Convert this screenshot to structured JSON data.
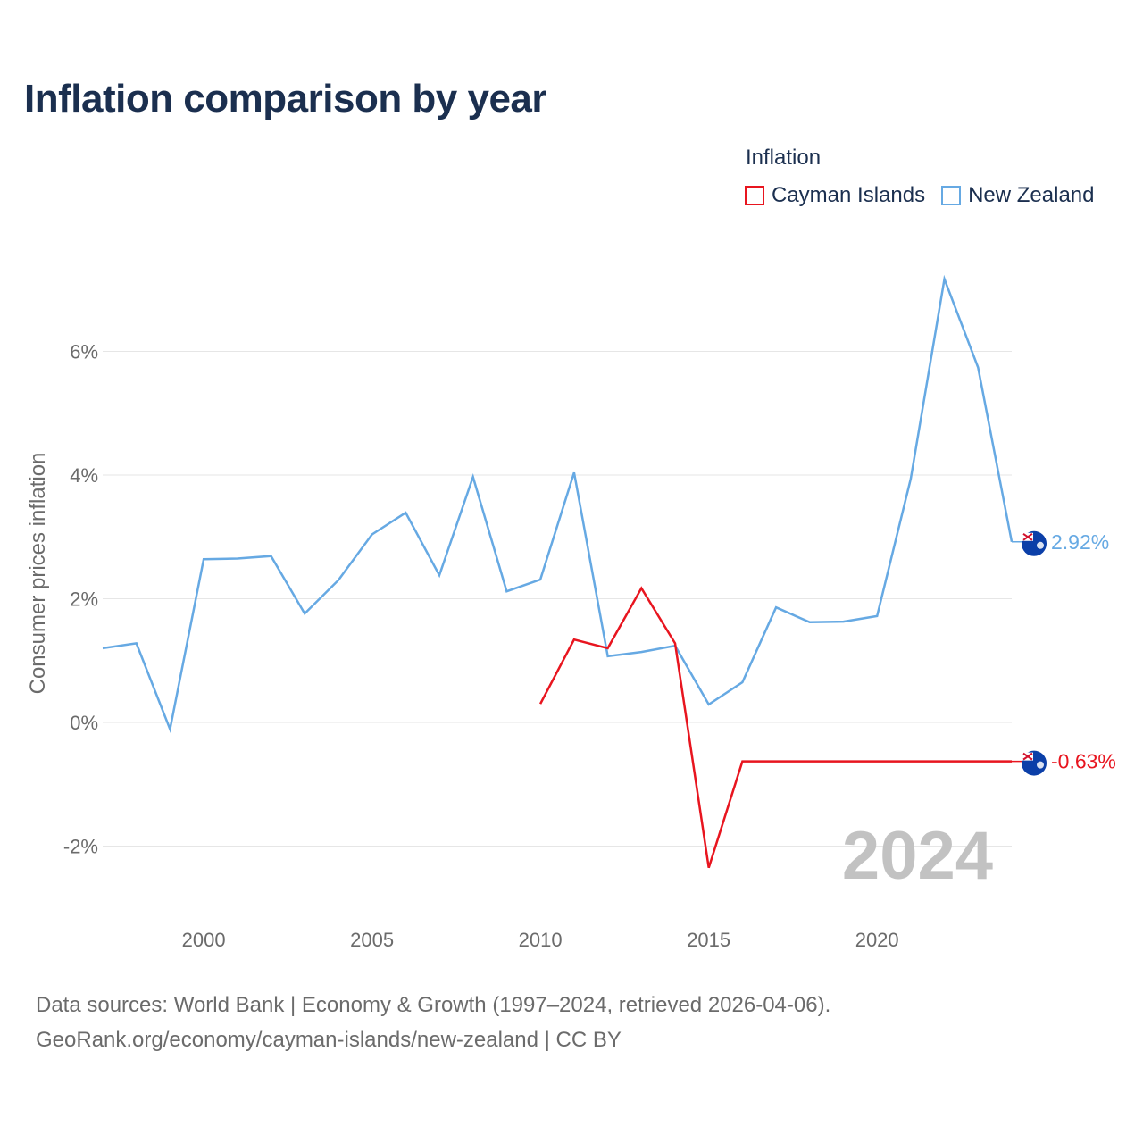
{
  "title": "Inflation comparison by year",
  "legend": {
    "title": "Inflation",
    "items": [
      {
        "label": "Cayman Islands",
        "color": "#e8151f"
      },
      {
        "label": "New Zealand",
        "color": "#66a9e3"
      }
    ]
  },
  "footer": {
    "line1": "Data sources: World Bank | Economy & Growth (1997–2024, retrieved 2026-04-06).",
    "line2": "GeoRank.org/economy/cayman-islands/new-zealand | CC BY"
  },
  "chart_data": {
    "type": "line",
    "title": "Inflation comparison by year",
    "ylabel": "Consumer prices inflation",
    "xlabel": "",
    "xlim": [
      1997,
      2024
    ],
    "ylim": [
      -3,
      7.5
    ],
    "grid": true,
    "year_watermark": "2024",
    "x_ticks": [
      {
        "value": 2000,
        "label": "2000"
      },
      {
        "value": 2005,
        "label": "2005"
      },
      {
        "value": 2010,
        "label": "2010"
      },
      {
        "value": 2015,
        "label": "2015"
      },
      {
        "value": 2020,
        "label": "2020"
      }
    ],
    "y_ticks": [
      {
        "value": 6,
        "label": "6%"
      },
      {
        "value": 4,
        "label": "4%"
      },
      {
        "value": 2,
        "label": "2%"
      },
      {
        "value": 0,
        "label": "0%"
      },
      {
        "value": -2,
        "label": "-2%"
      }
    ],
    "series": [
      {
        "name": "New Zealand",
        "color": "#66a9e3",
        "end_label": "2.92%",
        "x": [
          1997,
          1998,
          1999,
          2000,
          2001,
          2002,
          2003,
          2004,
          2005,
          2006,
          2007,
          2008,
          2009,
          2010,
          2011,
          2012,
          2013,
          2014,
          2015,
          2016,
          2017,
          2018,
          2019,
          2020,
          2021,
          2022,
          2023,
          2024
        ],
        "values": [
          1.2,
          1.28,
          -0.11,
          2.64,
          2.65,
          2.69,
          1.76,
          2.3,
          3.04,
          3.39,
          2.38,
          3.97,
          2.12,
          2.31,
          4.04,
          1.07,
          1.14,
          1.24,
          0.29,
          0.65,
          1.86,
          1.62,
          1.63,
          1.72,
          3.94,
          7.17,
          5.74,
          2.92
        ]
      },
      {
        "name": "Cayman Islands",
        "color": "#e8151f",
        "end_label": "-0.63%",
        "x": [
          2010,
          2011,
          2012,
          2013,
          2014,
          2015,
          2016,
          2024
        ],
        "values": [
          0.3,
          1.34,
          1.2,
          2.17,
          1.28,
          -2.35,
          -0.63,
          -0.63
        ]
      }
    ]
  }
}
